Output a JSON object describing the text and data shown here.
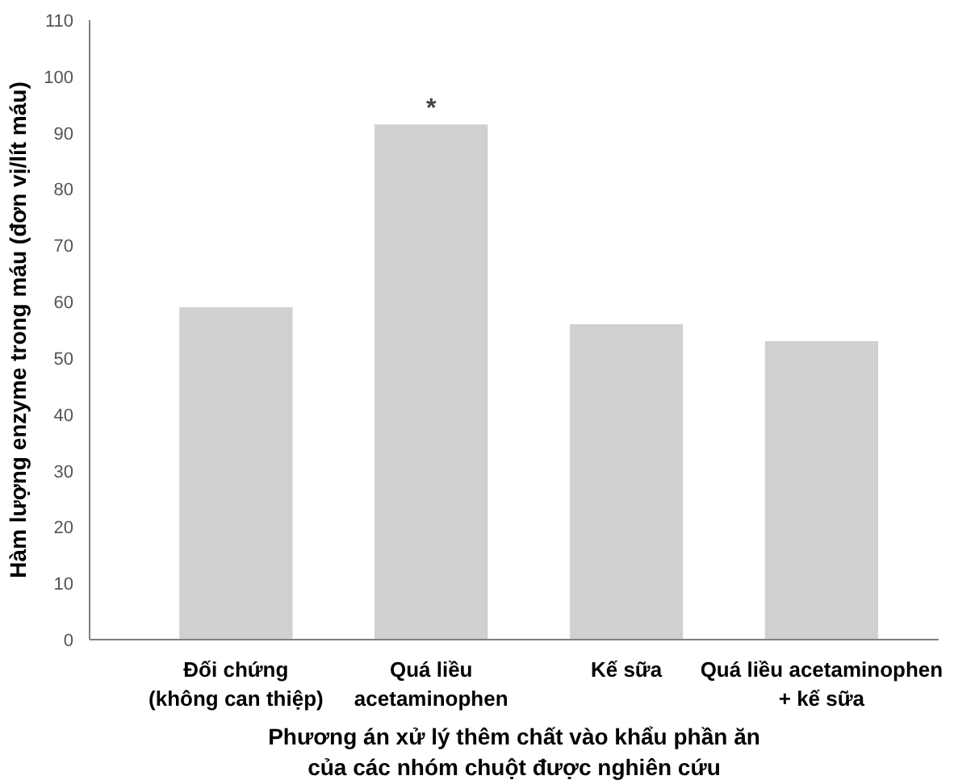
{
  "chart_data": {
    "type": "bar",
    "xlabel": "Phương án xử lý thêm chất vào khẩu phần ăn\ncủa các nhóm chuột được nghiên cứu",
    "ylabel": "Hàm lượng enzyme trong máu (đơn vị/lít máu)",
    "categories": [
      "Đối chứng\n(không can thiệp)",
      "Quá liều\nacetaminophen",
      "Kế sữa",
      "Quá liều acetaminophen\n+ kế sữa"
    ],
    "values": [
      59,
      91.5,
      56,
      53
    ],
    "color": "#d0d0d0",
    "ylim": [
      0,
      110
    ],
    "yticks": [
      0,
      10,
      20,
      30,
      40,
      50,
      60,
      70,
      80,
      90,
      100,
      110
    ],
    "annotations": [
      {
        "text": "*",
        "x": "Quá liều\nacetaminophen",
        "y": 91.5
      }
    ],
    "grid": false
  }
}
